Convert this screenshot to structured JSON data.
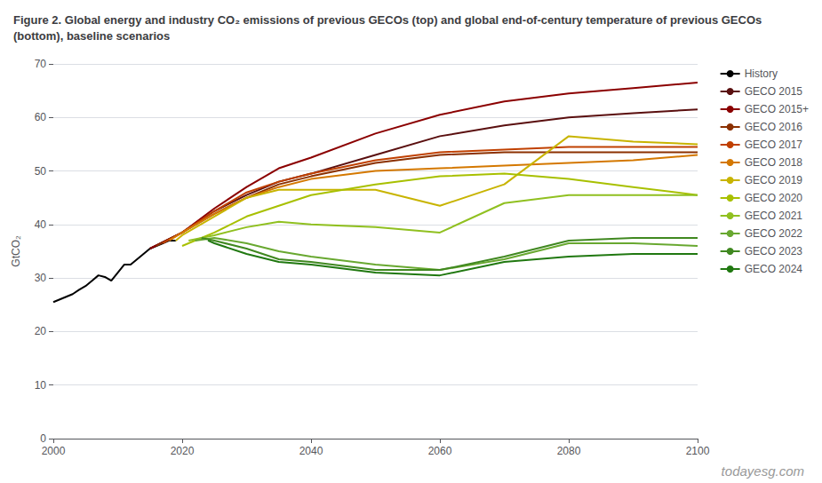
{
  "chart_data": {
    "type": "line",
    "title": "Figure 2. Global energy and industry CO₂ emissions of previous GECOs (top) and global end-of-century temperature of previous GECOs (bottom), baseline scenarios",
    "ylabel": "GtCO₂",
    "annotations": [
      "todayesg.com"
    ],
    "xlim": [
      2000,
      2100
    ],
    "xticks": [
      2000,
      2020,
      2040,
      2060,
      2080,
      2100
    ],
    "ylim": [
      0,
      70
    ],
    "yticks": [
      0,
      10,
      20,
      30,
      40,
      50,
      60,
      70
    ],
    "grid": true,
    "legend": "upper right",
    "series": [
      {
        "name": "History",
        "color": "#000000",
        "x": [
          2000,
          2001,
          2002,
          2003,
          2004,
          2005,
          2006,
          2007,
          2008,
          2009,
          2010,
          2011,
          2012,
          2013,
          2014,
          2015,
          2016,
          2017,
          2018,
          2019
        ],
        "values": [
          25.5,
          26.0,
          26.5,
          27.0,
          27.8,
          28.5,
          29.5,
          30.5,
          30.2,
          29.5,
          31.0,
          32.5,
          32.5,
          33.5,
          34.5,
          35.5,
          36.0,
          36.5,
          37.0,
          37.0
        ]
      },
      {
        "name": "GECO 2015",
        "color": "#5a0f0f",
        "x": [
          2015,
          2020,
          2025,
          2030,
          2035,
          2040,
          2050,
          2060,
          2070,
          2080,
          2090,
          2100
        ],
        "values": [
          35.5,
          38.5,
          42.5,
          45.5,
          48.0,
          49.5,
          53.0,
          56.5,
          58.5,
          60.0,
          60.8,
          61.5
        ]
      },
      {
        "name": "GECO 2015+",
        "color": "#8b0000",
        "x": [
          2015,
          2020,
          2025,
          2030,
          2035,
          2040,
          2050,
          2060,
          2070,
          2080,
          2090,
          2100
        ],
        "values": [
          35.5,
          38.5,
          43.0,
          47.0,
          50.5,
          52.5,
          57.0,
          60.5,
          63.0,
          64.5,
          65.5,
          66.5
        ]
      },
      {
        "name": "GECO 2016",
        "color": "#8b3000",
        "x": [
          2016,
          2020,
          2025,
          2030,
          2035,
          2040,
          2050,
          2060,
          2070,
          2080,
          2090,
          2100
        ],
        "values": [
          36.0,
          38.5,
          42.0,
          45.0,
          47.5,
          49.0,
          51.5,
          53.0,
          53.5,
          53.5,
          53.5,
          53.5
        ]
      },
      {
        "name": "GECO 2017",
        "color": "#c04000",
        "x": [
          2017,
          2020,
          2025,
          2030,
          2035,
          2040,
          2050,
          2060,
          2070,
          2080,
          2090,
          2100
        ],
        "values": [
          36.5,
          38.5,
          42.5,
          46.0,
          48.0,
          49.5,
          52.0,
          53.5,
          54.0,
          54.5,
          54.5,
          54.5
        ]
      },
      {
        "name": "GECO 2018",
        "color": "#d47800",
        "x": [
          2018,
          2020,
          2025,
          2030,
          2035,
          2040,
          2050,
          2060,
          2070,
          2080,
          2090,
          2100
        ],
        "values": [
          37.0,
          38.5,
          42.0,
          45.0,
          47.0,
          48.5,
          50.0,
          50.5,
          51.0,
          51.5,
          52.0,
          53.0
        ]
      },
      {
        "name": "GECO 2019",
        "color": "#c8b400",
        "x": [
          2019,
          2020,
          2025,
          2030,
          2035,
          2040,
          2050,
          2060,
          2070,
          2080,
          2090,
          2100
        ],
        "values": [
          37.0,
          38.0,
          41.5,
          45.0,
          46.5,
          46.5,
          46.5,
          43.5,
          47.5,
          56.5,
          55.5,
          55.0
        ]
      },
      {
        "name": "GECO 2020",
        "color": "#a8c000",
        "x": [
          2020,
          2025,
          2030,
          2035,
          2040,
          2050,
          2060,
          2070,
          2080,
          2090,
          2100
        ],
        "values": [
          36.0,
          38.5,
          41.5,
          43.5,
          45.5,
          47.5,
          49.0,
          49.5,
          48.5,
          47.0,
          45.5
        ]
      },
      {
        "name": "GECO 2021",
        "color": "#90c020",
        "x": [
          2021,
          2025,
          2030,
          2035,
          2040,
          2050,
          2060,
          2070,
          2080,
          2090,
          2100
        ],
        "values": [
          37.0,
          38.0,
          39.5,
          40.5,
          40.0,
          39.5,
          38.5,
          44.0,
          45.5,
          45.5,
          45.5
        ]
      },
      {
        "name": "GECO 2022",
        "color": "#68a830",
        "x": [
          2022,
          2025,
          2030,
          2035,
          2040,
          2050,
          2060,
          2070,
          2080,
          2090,
          2100
        ],
        "values": [
          37.0,
          37.5,
          36.5,
          35.0,
          34.0,
          32.5,
          31.5,
          33.5,
          36.5,
          36.5,
          36.0
        ]
      },
      {
        "name": "GECO 2023",
        "color": "#408820",
        "x": [
          2023,
          2025,
          2030,
          2035,
          2040,
          2050,
          2060,
          2070,
          2080,
          2090,
          2100
        ],
        "values": [
          37.5,
          37.0,
          35.5,
          33.5,
          33.0,
          31.5,
          31.5,
          34.0,
          37.0,
          37.5,
          37.5
        ]
      },
      {
        "name": "GECO 2024",
        "color": "#207810",
        "x": [
          2024,
          2025,
          2030,
          2035,
          2040,
          2050,
          2060,
          2070,
          2080,
          2090,
          2100
        ],
        "values": [
          37.0,
          36.5,
          34.5,
          33.0,
          32.5,
          31.0,
          30.5,
          33.0,
          34.0,
          34.5,
          34.5
        ]
      }
    ]
  }
}
